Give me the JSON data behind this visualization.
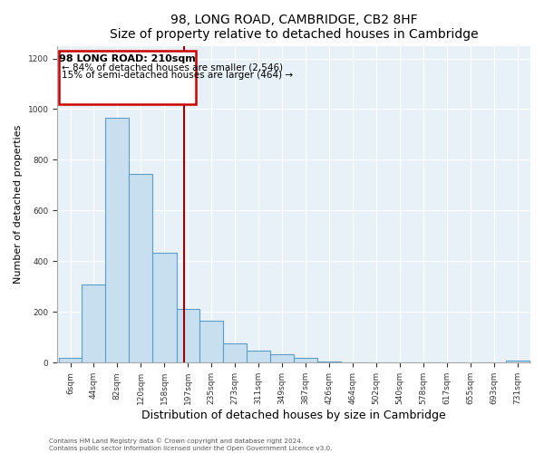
{
  "title": "98, LONG ROAD, CAMBRIDGE, CB2 8HF",
  "subtitle": "Size of property relative to detached houses in Cambridge",
  "xlabel": "Distribution of detached houses by size in Cambridge",
  "ylabel": "Number of detached properties",
  "bar_edges": [
    6,
    44,
    82,
    120,
    158,
    197,
    235,
    273,
    311,
    349,
    387,
    426,
    464,
    502,
    540,
    578,
    617,
    655,
    693,
    731,
    769
  ],
  "bar_heights": [
    20,
    310,
    965,
    745,
    435,
    213,
    165,
    75,
    48,
    33,
    18,
    5,
    0,
    0,
    0,
    0,
    0,
    0,
    0,
    10
  ],
  "bar_color": "#c8dff0",
  "bar_edgecolor": "#5a9ec9",
  "vline_x": 210,
  "vline_color": "#990000",
  "annotation_title": "98 LONG ROAD: 210sqm",
  "annotation_line1": "← 84% of detached houses are smaller (2,546)",
  "annotation_line2": "15% of semi-detached houses are larger (464) →",
  "annotation_box_color": "#cc0000",
  "ylim": [
    0,
    1250
  ],
  "yticks": [
    0,
    200,
    400,
    600,
    800,
    1000,
    1200
  ],
  "footnote1": "Contains HM Land Registry data © Crown copyright and database right 2024.",
  "footnote2": "Contains public sector information licensed under the Open Government Licence v3.0.",
  "plot_bg_color": "#e8f0f8"
}
